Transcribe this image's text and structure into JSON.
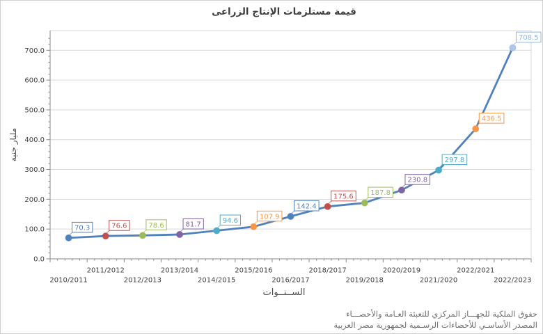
{
  "title": "قيمة مستلزمات الإنتاج الزراعى",
  "chart_data": {
    "type": "line",
    "title": "قيمة مستلزمات الإنتاج الزراعى",
    "xlabel": "الســنــوات",
    "ylabel": "مليار جنية",
    "categories": [
      "2010/2011",
      "2011/2012",
      "2012/2013",
      "2013/2014",
      "2014/2015",
      "2015/2016",
      "2016/2017",
      "2018/2017",
      "2019/2018",
      "2020/2019",
      "2021/2020",
      "2022/2021",
      "2022/2023"
    ],
    "values": [
      70.3,
      76.6,
      78.6,
      81.7,
      94.6,
      107.9,
      142.4,
      175.6,
      187.8,
      230.8,
      297.8,
      436.5,
      708.5
    ],
    "ylim": [
      0,
      765
    ],
    "ytick_interval": 100,
    "ytick_decimals": 1,
    "grid": "horizontal",
    "legend": "none",
    "line_color": "#4F81BD",
    "point_colors": [
      "#4F81BD",
      "#C0504D",
      "#9BBB59",
      "#8064A2",
      "#4BACC6",
      "#F79646",
      "#4F81BD",
      "#C0504D",
      "#9BBB59",
      "#8064A2",
      "#4BACC6",
      "#F79646",
      "#AFC7E7"
    ],
    "label_colors": [
      "#4F81BD",
      "#C0504D",
      "#9BBB59",
      "#8064A2",
      "#4BACC6",
      "#F79646",
      "#4F81BD",
      "#C0504D",
      "#9BBB59",
      "#8064A2",
      "#4BACC6",
      "#F79646",
      "#95B3D7"
    ],
    "axis_color": "#8a8a8a",
    "grid_color": "#d9d9d9",
    "tick_label_color": "#404040"
  },
  "footer": {
    "line1": "حقوق الملكية للجهـــاز المركزي للتعبئة العـامة والأحصـــاء",
    "line2": "المصدر الأساسـي للأحصاءات الرسـمية لجمهورية مصر العربية"
  }
}
